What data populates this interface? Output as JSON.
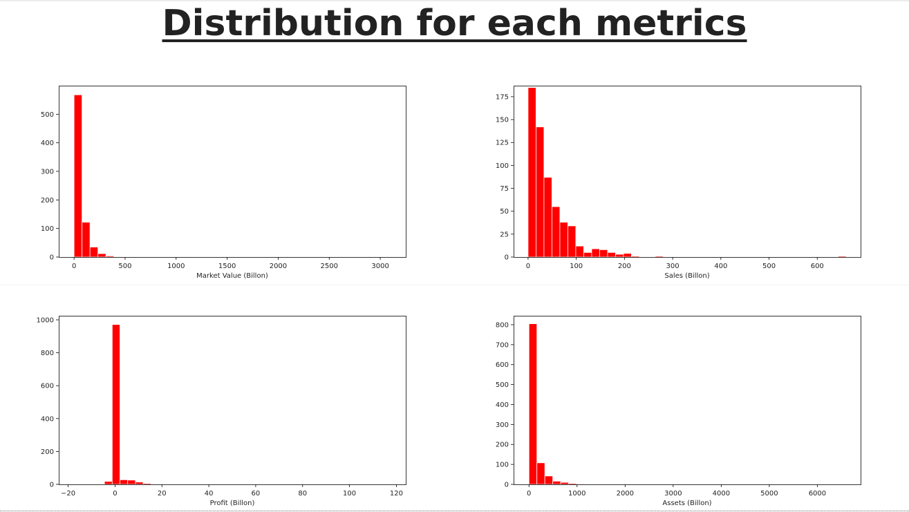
{
  "page": {
    "title": "Distribution for each metrics"
  },
  "style": {
    "bar_color": "#ff0000",
    "bar_edge_color": "#ffffff",
    "axis_color": "#000000",
    "title_color": "#222222"
  },
  "chart_data": [
    {
      "type": "bar",
      "title": "",
      "xlabel": "Market Value (Billon)",
      "ylabel": "",
      "xlim": [
        -150,
        3250
      ],
      "ylim": [
        0,
        600
      ],
      "xticks": [
        0,
        500,
        1000,
        1500,
        2000,
        2500,
        3000
      ],
      "yticks": [
        0,
        100,
        200,
        300,
        400,
        500
      ],
      "bin_start": 0,
      "bin_width": 78,
      "values": [
        568,
        122,
        35,
        12,
        4,
        2,
        1,
        0,
        0,
        0,
        0,
        0,
        0,
        0,
        0,
        0,
        0,
        0,
        0,
        0,
        0,
        0,
        0,
        0,
        0,
        0,
        0,
        0,
        0,
        0,
        0,
        0,
        0,
        0,
        0,
        0,
        0,
        0,
        0,
        1
      ],
      "grid": false
    },
    {
      "type": "bar",
      "title": "",
      "xlabel": "Sales (Billon)",
      "ylabel": "",
      "xlim": [
        -30,
        690
      ],
      "ylim": [
        0,
        187
      ],
      "xticks": [
        0,
        100,
        200,
        300,
        400,
        500,
        600
      ],
      "yticks": [
        0,
        25,
        50,
        75,
        100,
        125,
        150,
        175
      ],
      "bin_start": 0,
      "bin_width": 16.5,
      "values": [
        185,
        142,
        87,
        55,
        38,
        34,
        12,
        5,
        9,
        8,
        5,
        3,
        4,
        1,
        0,
        0,
        1,
        0,
        0,
        0,
        0,
        0,
        0,
        0,
        0,
        0,
        0,
        0,
        0,
        0,
        0,
        0,
        0,
        0,
        0,
        0,
        0,
        0,
        0,
        1
      ],
      "grid": false
    },
    {
      "type": "bar",
      "title": "",
      "xlabel": "Profit (Billon)",
      "ylabel": "",
      "xlim": [
        -24,
        124
      ],
      "ylim": [
        0,
        1025
      ],
      "xticks": [
        -20,
        0,
        20,
        40,
        60,
        80,
        100,
        120
      ],
      "yticks": [
        0,
        200,
        400,
        600,
        800,
        1000
      ],
      "bin_start": -4.5,
      "bin_width": 3.3,
      "values": [
        18,
        972,
        28,
        26,
        14,
        6,
        3,
        2,
        1,
        1,
        0,
        0,
        0,
        0,
        0,
        0,
        0,
        0,
        0,
        0,
        0,
        0,
        0,
        0,
        0,
        0,
        0,
        0,
        0,
        0,
        0,
        0,
        0,
        0,
        0,
        0,
        0,
        0,
        0,
        1
      ],
      "grid": false
    },
    {
      "type": "bar",
      "title": "",
      "xlabel": "Assets (Billon)",
      "ylabel": "",
      "xlim": [
        -320,
        6900
      ],
      "ylim": [
        0,
        845
      ],
      "xticks": [
        0,
        1000,
        2000,
        3000,
        4000,
        5000,
        6000
      ],
      "yticks": [
        0,
        100,
        200,
        300,
        400,
        500,
        600,
        700,
        800
      ],
      "bin_start": 0,
      "bin_width": 165,
      "values": [
        805,
        108,
        42,
        16,
        10,
        5,
        3,
        0,
        0,
        0,
        0,
        0,
        0,
        0,
        0,
        0,
        0,
        0,
        0,
        0,
        0,
        0,
        0,
        0,
        0,
        0,
        0,
        0,
        0,
        0,
        0,
        0,
        0,
        0,
        0,
        0,
        0,
        0,
        0,
        1
      ],
      "grid": false
    }
  ]
}
